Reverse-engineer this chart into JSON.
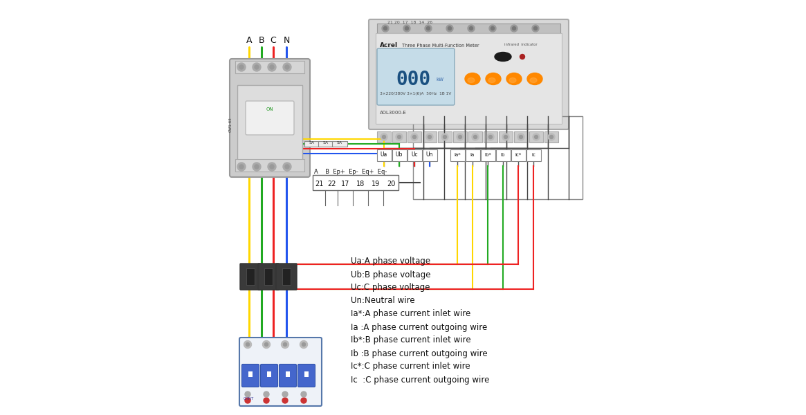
{
  "bg_color": "#f5f5f5",
  "wire_colors": {
    "A": "#FFD700",
    "B": "#22AA22",
    "C": "#EE2222",
    "N": "#2255EE",
    "gray": "#444444",
    "light_blue": "#44AAEE",
    "gray2": "#888888"
  },
  "legend_lines": [
    "Ua:A phase voltage",
    "Ub:B phase voltage",
    "Uc:C phase voltage",
    "Un:Neutral wire",
    "Ia*:A phase current inlet wire",
    "Ia :A phase current outgoing wire",
    "Ib*:B phase current inlet wire",
    "Ib :B phase current outgoing wire",
    "Ic*:C phase current inlet wire",
    "Ic  :C phase current outgoing wire"
  ],
  "terminal_labels_group1": [
    "Ua",
    "Ub",
    "Uc",
    "Un"
  ],
  "terminal_labels_group2": [
    "Ia*",
    "Ia",
    "Ib*",
    "Ib",
    "Ic*",
    "Ic"
  ],
  "abcn_labels": [
    "A",
    "B",
    "C",
    "N"
  ],
  "pulse_labels": [
    "A",
    "B",
    "Ep+",
    "Ep-",
    "Eq+",
    "Eq-"
  ],
  "pulse_numbers": [
    "21",
    "22",
    "17",
    "18",
    "19",
    "20"
  ],
  "fuse_labels": [
    "5A",
    "5A",
    "5A"
  ]
}
